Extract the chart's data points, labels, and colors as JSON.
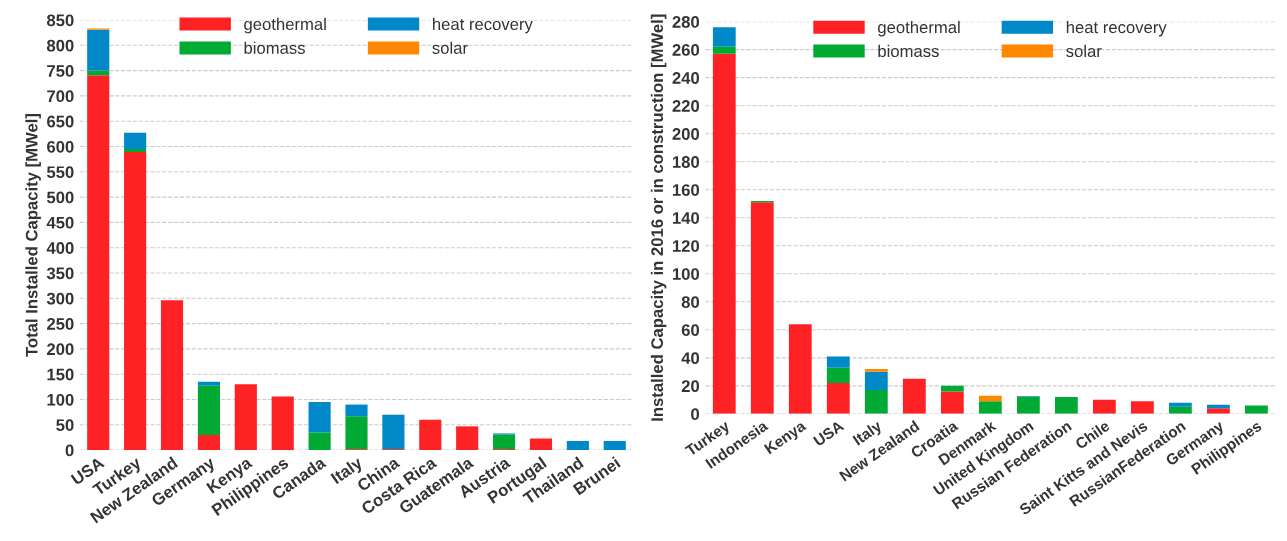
{
  "chart_data": [
    {
      "type": "bar",
      "stacked": true,
      "ylabel": "Total Installed Capacity [MWel]",
      "categories": [
        "USA",
        "Turkey",
        "New Zealand",
        "Germany",
        "Kenya",
        "Philippines",
        "Canada",
        "Italy",
        "China",
        "Costa Rica",
        "Guatemala",
        "Austria",
        "Portugal",
        "Thailand",
        "Brunei"
      ],
      "series": [
        {
          "name": "geothermal",
          "color": "#fe2224",
          "values": [
            741,
            589,
            296,
            30,
            130,
            106,
            0,
            2,
            2,
            60,
            47,
            2,
            23,
            0,
            0
          ]
        },
        {
          "name": "biomass",
          "color": "#00aa33",
          "values": [
            9,
            6,
            0,
            97,
            0,
            0,
            35,
            65,
            0,
            0,
            0,
            29,
            0,
            0,
            0
          ]
        },
        {
          "name": "heat recovery",
          "color": "#0088c8",
          "values": [
            81,
            32,
            0,
            8,
            0,
            0,
            60,
            23,
            68,
            0,
            0,
            2,
            0,
            18,
            18
          ]
        },
        {
          "name": "solar",
          "color": "#ff8800",
          "values": [
            2,
            0,
            0,
            0,
            0,
            0,
            0,
            0,
            0,
            0,
            0,
            0,
            0,
            0,
            0
          ]
        }
      ],
      "ylim": [
        0,
        850
      ],
      "yticks": [
        0,
        50,
        100,
        150,
        200,
        250,
        300,
        350,
        400,
        450,
        500,
        550,
        600,
        650,
        700,
        750,
        800,
        850
      ],
      "grid": "y",
      "legend": "top"
    },
    {
      "type": "bar",
      "stacked": true,
      "ylabel": "Installed Capacity in 2016 or in construction [MWel]",
      "categories": [
        "Turkey",
        "Indonesia",
        "Kenya",
        "USA",
        "Italy",
        "New Zealand",
        "Croatia",
        "Denmark",
        "United Kingdom",
        "Russian Federation",
        "Chile",
        "Saint Kitts and Nevis",
        "RussianFederation",
        "Germany",
        "Philippines"
      ],
      "series": [
        {
          "name": "geothermal",
          "color": "#fe2224",
          "values": [
            257,
            151,
            64,
            22,
            0,
            25,
            16,
            0,
            0,
            0,
            10,
            9,
            0,
            4,
            0
          ]
        },
        {
          "name": "biomass",
          "color": "#00aa33",
          "values": [
            5,
            1,
            0,
            11,
            17,
            0,
            4,
            9,
            12,
            12,
            0,
            0,
            5,
            0,
            6
          ]
        },
        {
          "name": "heat recovery",
          "color": "#0088c8",
          "values": [
            14,
            0,
            0,
            8,
            13,
            0,
            0,
            0,
            0.5,
            0,
            0,
            0,
            3,
            2.5,
            0
          ]
        },
        {
          "name": "solar",
          "color": "#ff8800",
          "values": [
            0,
            0,
            0,
            0,
            2,
            0,
            0,
            4,
            0,
            0,
            0,
            0,
            0,
            0,
            0
          ]
        }
      ],
      "ylim": [
        0,
        280
      ],
      "yticks": [
        0,
        20,
        40,
        60,
        80,
        100,
        120,
        140,
        160,
        180,
        200,
        220,
        240,
        260,
        280
      ],
      "grid": "y",
      "legend": "top"
    }
  ]
}
